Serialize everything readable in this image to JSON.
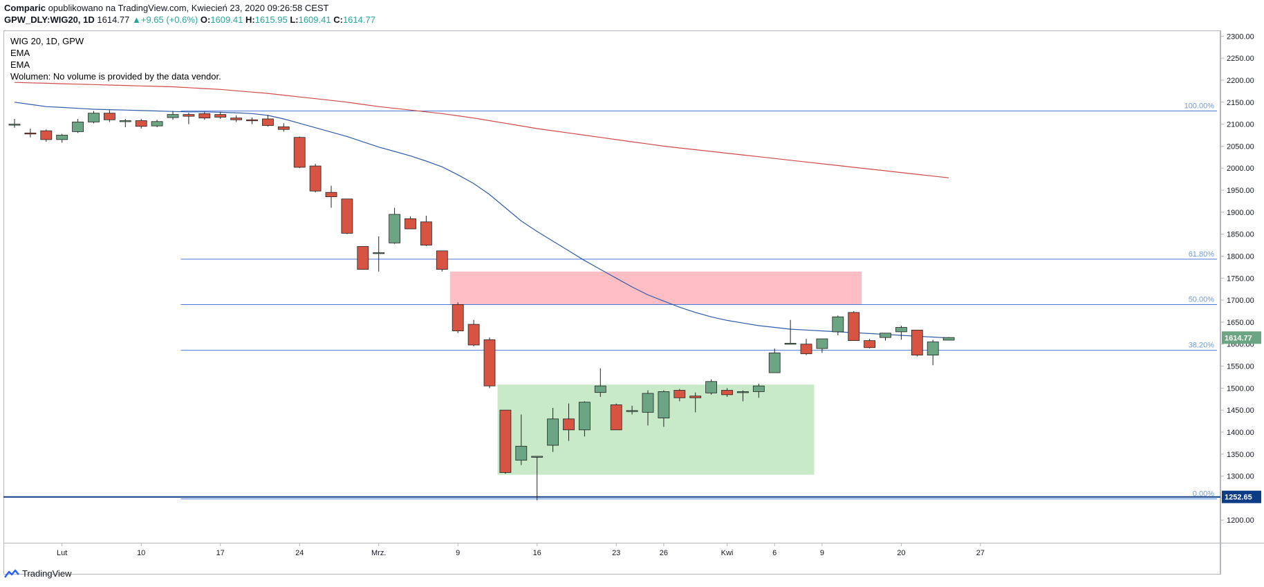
{
  "header": {
    "author": "Comparic",
    "published_text": "opublikowano na TradingView.com, Kwiecień 23, 2020 09:26:58 CEST",
    "symbol": "GPW_DLY:WIG20, 1D",
    "last": "1614.77",
    "triangle": "▲",
    "change": "+9.65 (+0.6%)",
    "o_label": "O:",
    "o_val": "1609.41",
    "h_label": "H:",
    "h_val": "1615.95",
    "l_label": "L:",
    "l_val": "1609.41",
    "c_label": "C:",
    "c_val": "1614.77"
  },
  "legend": {
    "title": "WIG 20, 1D, GPW",
    "ema1": "EMA",
    "ema2": "EMA",
    "volume": "Wolumen: No volume is provided by the data vendor."
  },
  "brand": {
    "name": "TradingView"
  },
  "colors": {
    "up": "#6ba583",
    "down": "#d75442",
    "ema_fast": "#2e5aa8",
    "ema_slow": "#d04848",
    "fib": "#4a78d6",
    "fib_label": "#6a9be0",
    "support": "#0d3c86",
    "resistance_box": "#ffb3b8",
    "range_box": "#bfe6bf",
    "price_tag": "#6ba583"
  },
  "chart_data": {
    "type": "candlestick",
    "y_axis": {
      "min": 1150,
      "max": 2310,
      "ticks": [
        "2300.00",
        "2250.00",
        "2200.00",
        "2150.00",
        "2100.00",
        "2050.00",
        "2000.00",
        "1950.00",
        "1900.00",
        "1850.00",
        "1800.00",
        "1750.00",
        "1700.00",
        "1650.00",
        "1600.00",
        "1550.00",
        "1500.00",
        "1450.00",
        "1400.00",
        "1350.00",
        "1300.00",
        "1250.00",
        "1200.00"
      ]
    },
    "x_axis": {
      "labels": [
        {
          "label": "Lut",
          "bar": 3
        },
        {
          "label": "10",
          "bar": 8
        },
        {
          "label": "17",
          "bar": 13
        },
        {
          "label": "24",
          "bar": 18
        },
        {
          "label": "Mrz.",
          "bar": 23
        },
        {
          "label": "9",
          "bar": 28
        },
        {
          "label": "16",
          "bar": 33
        },
        {
          "label": "23",
          "bar": 38
        },
        {
          "label": "26",
          "bar": 41
        },
        {
          "label": "Kwi",
          "bar": 45
        },
        {
          "label": "6",
          "bar": 48
        },
        {
          "label": "9",
          "bar": 51
        },
        {
          "label": "20",
          "bar": 56
        },
        {
          "label": "27",
          "bar": 61
        }
      ]
    },
    "candles": [
      [
        2100,
        2112,
        2092,
        2100
      ],
      [
        2080,
        2090,
        2070,
        2078
      ],
      [
        2085,
        2088,
        2060,
        2065
      ],
      [
        2065,
        2078,
        2058,
        2075
      ],
      [
        2083,
        2112,
        2080,
        2105
      ],
      [
        2105,
        2130,
        2102,
        2125
      ],
      [
        2125,
        2132,
        2105,
        2110
      ],
      [
        2108,
        2112,
        2093,
        2108
      ],
      [
        2108,
        2112,
        2090,
        2095
      ],
      [
        2096,
        2110,
        2093,
        2106
      ],
      [
        2115,
        2130,
        2110,
        2122
      ],
      [
        2122,
        2126,
        2100,
        2118
      ],
      [
        2124,
        2128,
        2110,
        2114
      ],
      [
        2122,
        2128,
        2112,
        2116
      ],
      [
        2114,
        2120,
        2105,
        2110
      ],
      [
        2110,
        2115,
        2100,
        2108
      ],
      [
        2112,
        2120,
        2095,
        2097
      ],
      [
        2094,
        2102,
        2083,
        2088
      ],
      [
        2070,
        2072,
        2000,
        2002
      ],
      [
        2005,
        2010,
        1945,
        1948
      ],
      [
        1945,
        1960,
        1910,
        1935
      ],
      [
        1930,
        1930,
        1850,
        1852
      ],
      [
        1822,
        1822,
        1770,
        1770
      ],
      [
        1808,
        1845,
        1765,
        1808
      ],
      [
        1830,
        1910,
        1828,
        1895
      ],
      [
        1885,
        1890,
        1862,
        1862
      ],
      [
        1878,
        1892,
        1823,
        1825
      ],
      [
        1812,
        1812,
        1765,
        1770
      ],
      [
        1690,
        1695,
        1625,
        1630
      ],
      [
        1645,
        1655,
        1595,
        1598
      ],
      [
        1610,
        1615,
        1500,
        1505
      ],
      [
        1450,
        1450,
        1305,
        1308
      ],
      [
        1336,
        1440,
        1325,
        1368
      ],
      [
        1345,
        1345,
        1245,
        1345
      ],
      [
        1370,
        1455,
        1355,
        1430
      ],
      [
        1430,
        1465,
        1380,
        1405
      ],
      [
        1405,
        1470,
        1390,
        1468
      ],
      [
        1490,
        1545,
        1480,
        1505
      ],
      [
        1462,
        1465,
        1405,
        1405
      ],
      [
        1449,
        1460,
        1440,
        1449
      ],
      [
        1445,
        1495,
        1415,
        1488
      ],
      [
        1432,
        1495,
        1412,
        1492
      ],
      [
        1495,
        1498,
        1470,
        1478
      ],
      [
        1482,
        1490,
        1445,
        1478
      ],
      [
        1489,
        1520,
        1485,
        1515
      ],
      [
        1495,
        1500,
        1480,
        1485
      ],
      [
        1490,
        1495,
        1470,
        1492
      ],
      [
        1492,
        1510,
        1478,
        1505
      ],
      [
        1535,
        1590,
        1535,
        1580
      ],
      [
        1602,
        1655,
        1600,
        1602
      ],
      [
        1600,
        1612,
        1575,
        1578
      ],
      [
        1590,
        1612,
        1580,
        1612
      ],
      [
        1628,
        1665,
        1620,
        1662
      ],
      [
        1672,
        1675,
        1608,
        1608
      ],
      [
        1608,
        1612,
        1590,
        1592
      ],
      [
        1615,
        1625,
        1608,
        1625
      ],
      [
        1628,
        1642,
        1610,
        1638
      ],
      [
        1632,
        1632,
        1572,
        1575
      ],
      [
        1575,
        1610,
        1552,
        1605
      ],
      [
        1609,
        1616,
        1609,
        1615
      ]
    ],
    "ema_fast": [
      2150,
      2145,
      2140,
      2138,
      2136,
      2134,
      2133,
      2132,
      2131,
      2130,
      2129,
      2128,
      2128,
      2127,
      2126,
      2124,
      2120,
      2112,
      2102,
      2092,
      2082,
      2072,
      2060,
      2048,
      2038,
      2028,
      2016,
      2003,
      1985,
      1965,
      1940,
      1910,
      1880,
      1856,
      1834,
      1812,
      1790,
      1770,
      1750,
      1730,
      1712,
      1698,
      1684,
      1672,
      1662,
      1654,
      1648,
      1642,
      1638,
      1634,
      1632,
      1630,
      1628,
      1626,
      1624,
      1622,
      1620,
      1618,
      1616,
      1614
    ],
    "ema_slow": [
      2195,
      2194,
      2193,
      2192,
      2191,
      2190,
      2189,
      2188,
      2187,
      2186,
      2185,
      2183,
      2181,
      2179,
      2176,
      2173,
      2170,
      2166,
      2162,
      2158,
      2154,
      2150,
      2145,
      2140,
      2136,
      2132,
      2128,
      2124,
      2119,
      2114,
      2108,
      2102,
      2096,
      2090,
      2085,
      2080,
      2075,
      2070,
      2065,
      2060,
      2055,
      2050,
      2046,
      2042,
      2038,
      2034,
      2030,
      2026,
      2022,
      2018,
      2014,
      2010,
      2006,
      2002,
      1998,
      1994,
      1990,
      1986,
      1982,
      1978
    ],
    "fib_levels": [
      {
        "label": "100.00%",
        "value": 2130
      },
      {
        "label": "61.80%",
        "value": 1793
      },
      {
        "label": "50.00%",
        "value": 1690
      },
      {
        "label": "38.20%",
        "value": 1586
      },
      {
        "label": "0.00%",
        "value": 1248
      }
    ],
    "support": {
      "label": "1252.65",
      "value": 1252.65
    },
    "last_price": {
      "label": "1614.77",
      "value": 1614.77
    },
    "resistance_zone": {
      "from_bar": 27.5,
      "to_bar": 53.5,
      "low": 1690,
      "high": 1765
    },
    "range_zone": {
      "from_bar": 30.5,
      "to_bar": 50.5,
      "low": 1303,
      "high": 1508
    }
  }
}
